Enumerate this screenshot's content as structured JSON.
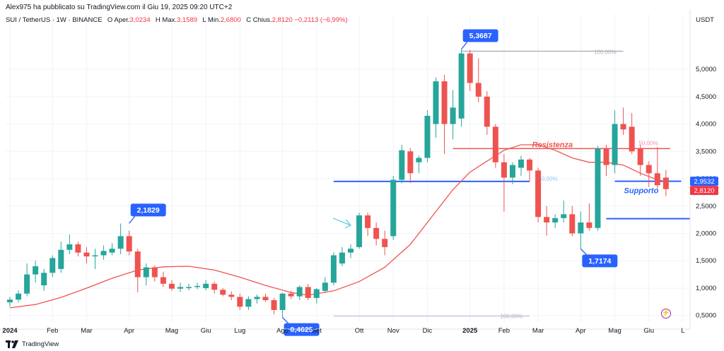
{
  "header": {
    "published_by": "Alex975 ha pubblicato su TradingView.com il Giu 19, 2025 09:20 UTC+2"
  },
  "symbol_line": {
    "symbol": "SUI / TetherUS · 1W · BINANCE",
    "open_label": "O",
    "open_text": "Aper.",
    "open_value": "3,0234",
    "high_label": "H",
    "high_text": "Max.",
    "high_value": "3,1589",
    "low_label": "L",
    "low_text": "Min.",
    "low_value": "2,6800",
    "close_label": "C",
    "close_text": "Chius.",
    "close_value": "2,8120",
    "change": "−0,2113 (−6,99%)"
  },
  "currency": "USDT",
  "footer": {
    "brand": "TradingView"
  },
  "colors": {
    "up": "#26a69a",
    "down": "#ef5350",
    "ma": "#ef5350",
    "blue": "#2962ff",
    "label_blue": "#2962ff",
    "grid": "#f0f3fa",
    "text": "#131722",
    "price_tag": "#f23645"
  },
  "chart_data": {
    "type": "candlestick",
    "interval": "1W",
    "y_scale": "linear",
    "ylim": [
      0.38,
      5.75
    ],
    "grid": true,
    "y_ticks": [
      {
        "value": 0.5,
        "label": "0,5000"
      },
      {
        "value": 1.0,
        "label": "1,0000"
      },
      {
        "value": 1.5,
        "label": "1,5000"
      },
      {
        "value": 2.0,
        "label": "2,0000"
      },
      {
        "value": 2.5,
        "label": "2,5000"
      },
      {
        "value": 3.0,
        "label": "3,0000"
      },
      {
        "value": 3.5,
        "label": "3,5000"
      },
      {
        "value": 4.0,
        "label": "4,0000"
      },
      {
        "value": 4.5,
        "label": "4,5000"
      },
      {
        "value": 5.0,
        "label": "5,0000"
      }
    ],
    "x_ticks": [
      {
        "index": 0,
        "label": "2024"
      },
      {
        "index": 5,
        "label": "Feb"
      },
      {
        "index": 9,
        "label": "Mar"
      },
      {
        "index": 14,
        "label": "Apr"
      },
      {
        "index": 19,
        "label": "Mag"
      },
      {
        "index": 23,
        "label": "Giu"
      },
      {
        "index": 27,
        "label": "Lug"
      },
      {
        "index": 32,
        "label": "Ago"
      },
      {
        "index": 36,
        "label": "Set"
      },
      {
        "index": 41,
        "label": "Ott"
      },
      {
        "index": 45,
        "label": "Nov"
      },
      {
        "index": 49,
        "label": "Dic"
      },
      {
        "index": 54,
        "label": "2025"
      },
      {
        "index": 58,
        "label": "Feb"
      },
      {
        "index": 62,
        "label": "Mar"
      },
      {
        "index": 67,
        "label": "Apr"
      },
      {
        "index": 71,
        "label": "Mag"
      },
      {
        "index": 75,
        "label": "Giu"
      },
      {
        "index": 79,
        "label": "L"
      }
    ],
    "candles": [
      {
        "o": 0.74,
        "h": 0.84,
        "l": 0.66,
        "c": 0.79
      },
      {
        "o": 0.79,
        "h": 0.96,
        "l": 0.74,
        "c": 0.9
      },
      {
        "o": 0.9,
        "h": 1.45,
        "l": 0.85,
        "c": 1.25
      },
      {
        "o": 1.25,
        "h": 1.5,
        "l": 1.1,
        "c": 1.4
      },
      {
        "o": 1.05,
        "h": 1.35,
        "l": 0.95,
        "c": 1.28
      },
      {
        "o": 1.28,
        "h": 1.6,
        "l": 1.2,
        "c": 1.55
      },
      {
        "o": 1.35,
        "h": 1.85,
        "l": 1.28,
        "c": 1.7
      },
      {
        "o": 1.7,
        "h": 1.98,
        "l": 1.62,
        "c": 1.8
      },
      {
        "o": 1.8,
        "h": 1.85,
        "l": 1.58,
        "c": 1.65
      },
      {
        "o": 1.65,
        "h": 1.75,
        "l": 1.45,
        "c": 1.58
      },
      {
        "o": 1.58,
        "h": 1.72,
        "l": 1.35,
        "c": 1.6
      },
      {
        "o": 1.6,
        "h": 1.78,
        "l": 1.52,
        "c": 1.68
      },
      {
        "o": 1.65,
        "h": 1.82,
        "l": 1.6,
        "c": 1.72
      },
      {
        "o": 1.72,
        "h": 2.18,
        "l": 1.62,
        "c": 1.95
      },
      {
        "o": 1.95,
        "h": 2.05,
        "l": 1.6,
        "c": 1.67
      },
      {
        "o": 1.67,
        "h": 1.72,
        "l": 0.92,
        "c": 1.2
      },
      {
        "o": 1.2,
        "h": 1.45,
        "l": 1.05,
        "c": 1.38
      },
      {
        "o": 1.38,
        "h": 1.42,
        "l": 1.12,
        "c": 1.2
      },
      {
        "o": 1.2,
        "h": 1.3,
        "l": 1.02,
        "c": 1.08
      },
      {
        "o": 1.08,
        "h": 1.15,
        "l": 0.95,
        "c": 0.99
      },
      {
        "o": 0.99,
        "h": 1.1,
        "l": 0.93,
        "c": 1.02
      },
      {
        "o": 1.0,
        "h": 1.08,
        "l": 0.96,
        "c": 1.02
      },
      {
        "o": 1.02,
        "h": 1.1,
        "l": 0.98,
        "c": 1.04
      },
      {
        "o": 1.0,
        "h": 1.15,
        "l": 0.96,
        "c": 1.08
      },
      {
        "o": 1.08,
        "h": 1.12,
        "l": 0.9,
        "c": 0.97
      },
      {
        "o": 0.97,
        "h": 1.0,
        "l": 0.85,
        "c": 0.88
      },
      {
        "o": 0.88,
        "h": 0.94,
        "l": 0.78,
        "c": 0.84
      },
      {
        "o": 0.84,
        "h": 0.9,
        "l": 0.6,
        "c": 0.66
      },
      {
        "o": 0.66,
        "h": 0.85,
        "l": 0.6,
        "c": 0.8
      },
      {
        "o": 0.8,
        "h": 0.88,
        "l": 0.72,
        "c": 0.84
      },
      {
        "o": 0.84,
        "h": 0.9,
        "l": 0.75,
        "c": 0.78
      },
      {
        "o": 0.78,
        "h": 0.82,
        "l": 0.52,
        "c": 0.6
      },
      {
        "o": 0.6,
        "h": 0.92,
        "l": 0.46,
        "c": 0.9
      },
      {
        "o": 0.9,
        "h": 0.95,
        "l": 0.8,
        "c": 0.85
      },
      {
        "o": 0.85,
        "h": 1.05,
        "l": 0.78,
        "c": 1.02
      },
      {
        "o": 1.02,
        "h": 1.08,
        "l": 0.78,
        "c": 0.82
      },
      {
        "o": 0.82,
        "h": 1.0,
        "l": 0.72,
        "c": 0.98
      },
      {
        "o": 0.95,
        "h": 1.2,
        "l": 0.92,
        "c": 1.1
      },
      {
        "o": 1.1,
        "h": 1.65,
        "l": 1.05,
        "c": 1.6
      },
      {
        "o": 1.45,
        "h": 1.75,
        "l": 1.4,
        "c": 1.65
      },
      {
        "o": 1.65,
        "h": 1.8,
        "l": 1.55,
        "c": 1.72
      },
      {
        "o": 1.75,
        "h": 2.38,
        "l": 1.72,
        "c": 2.33
      },
      {
        "o": 2.33,
        "h": 2.38,
        "l": 1.95,
        "c": 2.1
      },
      {
        "o": 2.1,
        "h": 2.2,
        "l": 1.78,
        "c": 1.9
      },
      {
        "o": 1.9,
        "h": 2.05,
        "l": 1.6,
        "c": 1.75
      },
      {
        "o": 1.95,
        "h": 3.05,
        "l": 1.88,
        "c": 2.98
      },
      {
        "o": 2.98,
        "h": 3.62,
        "l": 2.92,
        "c": 3.52
      },
      {
        "o": 3.5,
        "h": 3.56,
        "l": 2.92,
        "c": 3.1
      },
      {
        "o": 3.3,
        "h": 3.42,
        "l": 3.1,
        "c": 3.38
      },
      {
        "o": 3.38,
        "h": 4.25,
        "l": 3.3,
        "c": 4.15
      },
      {
        "o": 4.0,
        "h": 4.85,
        "l": 3.75,
        "c": 4.78
      },
      {
        "o": 4.78,
        "h": 4.9,
        "l": 3.45,
        "c": 4.0
      },
      {
        "o": 4.0,
        "h": 4.62,
        "l": 3.72,
        "c": 4.3
      },
      {
        "o": 4.1,
        "h": 5.37,
        "l": 3.95,
        "c": 5.29
      },
      {
        "o": 5.29,
        "h": 5.35,
        "l": 4.6,
        "c": 4.75
      },
      {
        "o": 4.75,
        "h": 5.2,
        "l": 4.4,
        "c": 4.5
      },
      {
        "o": 4.5,
        "h": 4.6,
        "l": 3.8,
        "c": 3.95
      },
      {
        "o": 3.95,
        "h": 4.0,
        "l": 3.2,
        "c": 3.3
      },
      {
        "o": 3.3,
        "h": 3.45,
        "l": 2.4,
        "c": 3.02
      },
      {
        "o": 3.02,
        "h": 3.3,
        "l": 2.9,
        "c": 3.25
      },
      {
        "o": 3.2,
        "h": 3.42,
        "l": 3.05,
        "c": 3.35
      },
      {
        "o": 3.35,
        "h": 3.38,
        "l": 2.95,
        "c": 3.15
      },
      {
        "o": 3.15,
        "h": 3.2,
        "l": 2.2,
        "c": 2.3
      },
      {
        "o": 2.3,
        "h": 2.5,
        "l": 1.96,
        "c": 2.2
      },
      {
        "o": 2.2,
        "h": 2.35,
        "l": 2.1,
        "c": 2.28
      },
      {
        "o": 2.28,
        "h": 2.6,
        "l": 2.2,
        "c": 2.35
      },
      {
        "o": 2.35,
        "h": 2.5,
        "l": 1.95,
        "c": 2.0
      },
      {
        "o": 2.0,
        "h": 2.4,
        "l": 1.72,
        "c": 2.2
      },
      {
        "o": 2.2,
        "h": 2.55,
        "l": 2.05,
        "c": 2.1
      },
      {
        "o": 2.1,
        "h": 3.6,
        "l": 2.05,
        "c": 3.55
      },
      {
        "o": 3.55,
        "h": 3.62,
        "l": 3.05,
        "c": 3.25
      },
      {
        "o": 3.25,
        "h": 4.25,
        "l": 3.1,
        "c": 4.0
      },
      {
        "o": 4.0,
        "h": 4.3,
        "l": 3.8,
        "c": 3.9
      },
      {
        "o": 3.95,
        "h": 4.2,
        "l": 3.45,
        "c": 3.5
      },
      {
        "o": 3.55,
        "h": 3.62,
        "l": 3.05,
        "c": 3.25
      },
      {
        "o": 3.25,
        "h": 3.32,
        "l": 2.85,
        "c": 3.1
      },
      {
        "o": 3.1,
        "h": 3.58,
        "l": 2.82,
        "c": 2.88
      },
      {
        "o": 3.02,
        "h": 3.16,
        "l": 2.68,
        "c": 2.81
      }
    ],
    "moving_average": [
      [
        0,
        0.64
      ],
      [
        3,
        0.7
      ],
      [
        6,
        0.83
      ],
      [
        9,
        1.0
      ],
      [
        12,
        1.18
      ],
      [
        15,
        1.33
      ],
      [
        18,
        1.39
      ],
      [
        21,
        1.4
      ],
      [
        24,
        1.33
      ],
      [
        27,
        1.2
      ],
      [
        30,
        1.05
      ],
      [
        33,
        0.92
      ],
      [
        35,
        0.87
      ],
      [
        38,
        0.95
      ],
      [
        41,
        1.12
      ],
      [
        44,
        1.38
      ],
      [
        47,
        1.8
      ],
      [
        50,
        2.4
      ],
      [
        52,
        2.8
      ],
      [
        54,
        3.12
      ],
      [
        56,
        3.32
      ],
      [
        58,
        3.52
      ],
      [
        60,
        3.62
      ],
      [
        62,
        3.62
      ],
      [
        64,
        3.52
      ],
      [
        66,
        3.38
      ],
      [
        68,
        3.3
      ],
      [
        70,
        3.3
      ],
      [
        72,
        3.25
      ],
      [
        74,
        3.1
      ],
      [
        76,
        2.98
      ],
      [
        77,
        2.95
      ]
    ],
    "callouts": [
      {
        "index": 14,
        "value": 2.1829,
        "label": "2,1829",
        "direction": "up"
      },
      {
        "index": 32,
        "value": 0.4625,
        "label": "0,4625",
        "direction": "down"
      },
      {
        "index": 53,
        "value": 5.3687,
        "label": "5,3687",
        "direction": "up"
      },
      {
        "index": 67,
        "value": 1.7174,
        "label": "1,7174",
        "direction": "down"
      }
    ],
    "levels": [
      {
        "name": "resistenza",
        "value": 3.55,
        "from_index": 52,
        "to_index": 77.5,
        "label": "Resistenza"
      },
      {
        "name": "supporto",
        "value": 2.9532,
        "from_index": 71,
        "to_index": 78.8,
        "label": "Supporto"
      },
      {
        "name": "blue-upper",
        "value": 2.95,
        "from_index": 38,
        "to_index": 61
      },
      {
        "name": "blue-lower",
        "value": 2.27,
        "from_index": 70,
        "to_index": 79.8
      }
    ],
    "fib_lines": [
      {
        "value": 5.33,
        "from_index": 53,
        "to_index": 72,
        "label": "100,00%"
      },
      {
        "value": 0.49,
        "from_index": 38,
        "to_index": 61,
        "label": "100,00%"
      },
      {
        "value": 3.65,
        "label": "50,00%"
      },
      {
        "value": 3.0,
        "label": "50,00%"
      }
    ],
    "price_tags": [
      {
        "value": 2.9532,
        "label": "2,9532"
      },
      {
        "value": 2.812,
        "label": "2,8120"
      }
    ],
    "annotations": [
      {
        "type": "arrow",
        "index": 40,
        "value": 2.15
      }
    ]
  }
}
